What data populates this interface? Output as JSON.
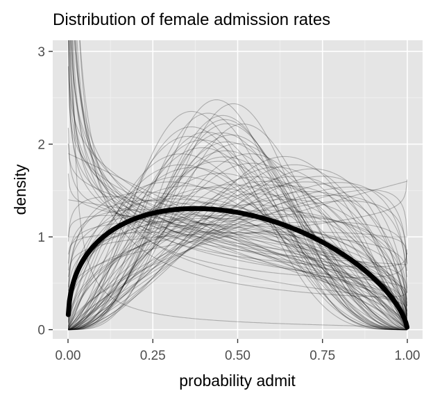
{
  "chart_data": {
    "type": "line",
    "title": "Distribution of female admission rates",
    "xlabel": "probability admit",
    "ylabel": "density",
    "xlim": [
      0,
      1
    ],
    "ylim": [
      0,
      3.1
    ],
    "x_ticks": [
      0,
      0.25,
      0.5,
      0.75,
      1
    ],
    "x_tick_labels": [
      "0.00",
      "0.25",
      "0.50",
      "0.75",
      "1.00"
    ],
    "y_ticks": [
      0,
      1,
      2,
      3
    ],
    "y_tick_labels": [
      "0",
      "1",
      "2",
      "3"
    ],
    "grid": true,
    "background": "#e5e5e5",
    "grid_color": "#ffffff",
    "series": [
      {
        "role": "mean-density",
        "distribution": "beta",
        "params": [
          1.39,
          1.65
        ],
        "color": "#000000",
        "style": "thick"
      },
      {
        "role": "posterior-sample-densities",
        "distribution": "beta",
        "color": "#000000",
        "opacity": 0.25,
        "params": [
          [
            1.2,
            1.5
          ],
          [
            1.5,
            1.8
          ],
          [
            1.9,
            2.2
          ],
          [
            2.3,
            2.6
          ],
          [
            2.8,
            3.1
          ],
          [
            1.4,
            1.6
          ],
          [
            1.7,
            2.3
          ],
          [
            2.1,
            2.9
          ],
          [
            1.6,
            1.4
          ],
          [
            2.5,
            2.2
          ],
          [
            3.0,
            3.3
          ],
          [
            1.3,
            2.0
          ],
          [
            1.8,
            2.6
          ],
          [
            2.2,
            3.4
          ],
          [
            2.6,
            3.0
          ],
          [
            1.1,
            1.3
          ],
          [
            1.5,
            1.3
          ],
          [
            2.0,
            1.8
          ],
          [
            2.4,
            2.0
          ],
          [
            3.2,
            2.9
          ],
          [
            1.6,
            2.4
          ],
          [
            2.0,
            3.0
          ],
          [
            2.7,
            3.6
          ],
          [
            1.9,
            1.5
          ],
          [
            2.3,
            1.9
          ],
          [
            1.4,
            1.9
          ],
          [
            1.7,
            1.6
          ],
          [
            2.9,
            2.6
          ],
          [
            3.4,
            3.4
          ],
          [
            2.1,
            2.2
          ],
          [
            0.9,
            1.2
          ],
          [
            0.8,
            1.1
          ],
          [
            0.7,
            1.0
          ],
          [
            0.85,
            1.3
          ],
          [
            0.75,
            1.4
          ],
          [
            0.6,
            1.2
          ],
          [
            0.95,
            1.5
          ],
          [
            0.8,
            1.6
          ],
          [
            0.55,
            1.05
          ],
          [
            0.7,
            1.2
          ],
          [
            0.9,
            1.8
          ],
          [
            0.65,
            1.3
          ],
          [
            0.8,
            1.35
          ],
          [
            0.6,
            0.95
          ],
          [
            1.0,
            1.9
          ],
          [
            0.7,
            1.5
          ],
          [
            0.85,
            1.45
          ],
          [
            0.75,
            1.15
          ],
          [
            0.9,
            1.6
          ],
          [
            0.95,
            1.25
          ],
          [
            1.05,
            1.1
          ],
          [
            1.0,
            1.4
          ],
          [
            1.1,
            1.7
          ],
          [
            1.2,
            1.25
          ],
          [
            1.3,
            1.1
          ],
          [
            1.15,
            1.55
          ],
          [
            1.25,
            1.8
          ],
          [
            1.35,
            1.45
          ],
          [
            1.1,
            1.05
          ],
          [
            1.45,
            1.25
          ],
          [
            1.0,
            1.0
          ],
          [
            1.05,
            1.35
          ],
          [
            1.4,
            1.7
          ],
          [
            1.5,
            2.0
          ],
          [
            1.3,
            1.4
          ],
          [
            3.5,
            4.0
          ],
          [
            4.0,
            4.5
          ],
          [
            3.8,
            5.0
          ],
          [
            4.5,
            5.5
          ],
          [
            3.2,
            4.2
          ],
          [
            3.6,
            3.8
          ],
          [
            4.2,
            4.0
          ],
          [
            3.0,
            4.5
          ],
          [
            3.4,
            5.2
          ],
          [
            4.8,
            5.0
          ],
          [
            2.9,
            3.9
          ],
          [
            3.3,
            3.6
          ],
          [
            4.1,
            4.7
          ],
          [
            2.7,
            4.1
          ],
          [
            3.9,
            4.3
          ],
          [
            2.0,
            1.2
          ],
          [
            1.8,
            1.1
          ],
          [
            2.5,
            1.5
          ],
          [
            2.2,
            1.3
          ],
          [
            1.9,
            1.25
          ],
          [
            1.6,
            1.0
          ],
          [
            2.8,
            1.7
          ],
          [
            2.4,
            1.6
          ],
          [
            1.7,
            1.15
          ],
          [
            3.0,
            2.0
          ],
          [
            2.6,
            1.8
          ],
          [
            2.1,
            1.45
          ],
          [
            3.3,
            2.3
          ],
          [
            2.9,
            2.2
          ],
          [
            2.3,
            1.7
          ],
          [
            0.45,
            0.9
          ],
          [
            0.05,
            1.2
          ],
          [
            0.3,
            0.95
          ],
          [
            1.2,
            0.95
          ],
          [
            0.4,
            1.1
          ]
        ]
      }
    ]
  }
}
